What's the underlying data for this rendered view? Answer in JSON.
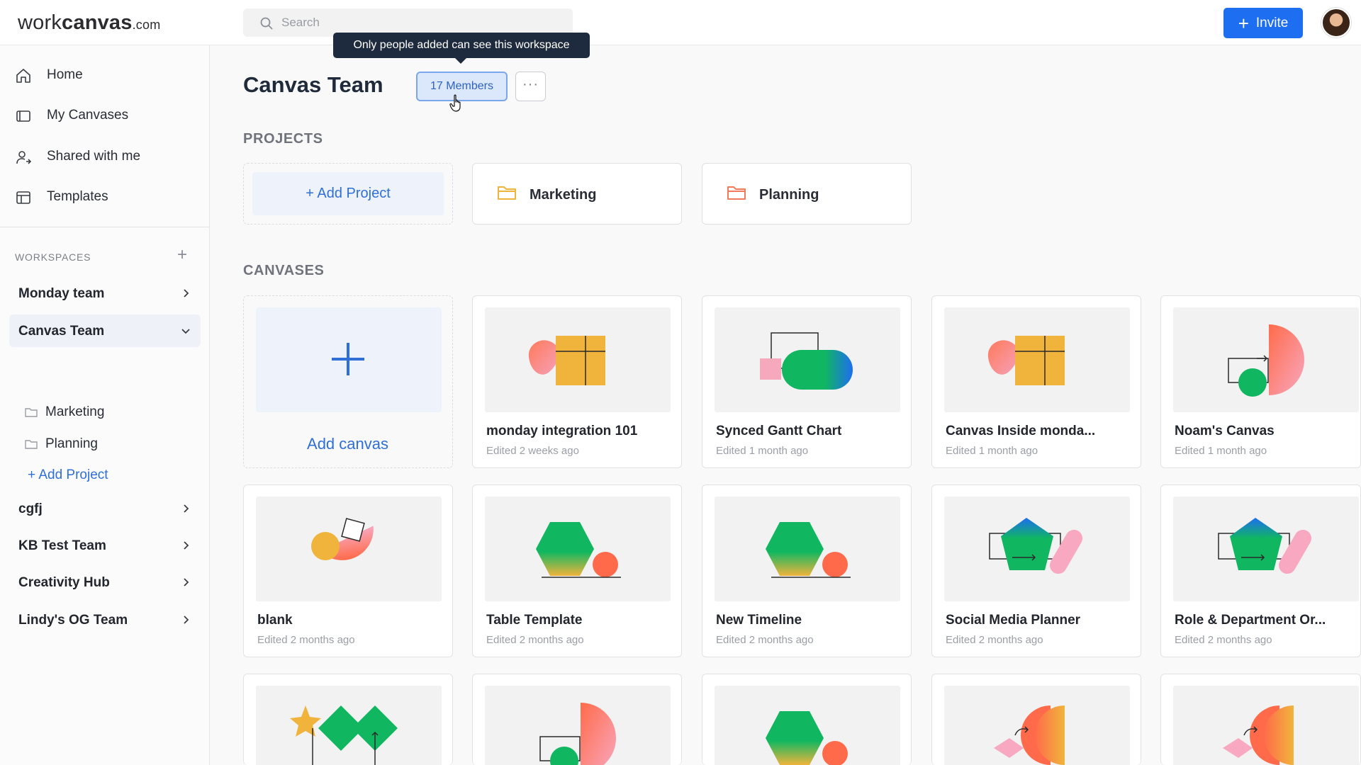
{
  "header": {
    "logo_part1": "work",
    "logo_part2": "canvas",
    "logo_part3": ".com",
    "search_placeholder": "Search",
    "invite_label": "Invite"
  },
  "sidebar": {
    "nav": [
      {
        "label": "Home",
        "icon": "home-icon"
      },
      {
        "label": "My Canvases",
        "icon": "canvas-icon"
      },
      {
        "label": "Shared with me",
        "icon": "user-share-icon"
      },
      {
        "label": "Templates",
        "icon": "template-icon"
      }
    ],
    "workspaces_title": "WORKSPACES",
    "workspaces": [
      {
        "label": "Monday team",
        "expanded": false
      },
      {
        "label": "Canvas Team",
        "expanded": true
      },
      {
        "label": "cgfj",
        "expanded": false
      },
      {
        "label": "KB Test Team",
        "expanded": false
      },
      {
        "label": "Creativity Hub",
        "expanded": false
      },
      {
        "label": "Lindy's OG Team",
        "expanded": false
      }
    ],
    "canvas_team_sub": [
      "Marketing",
      "Planning"
    ],
    "add_project": "+ Add Project"
  },
  "main": {
    "title": "Canvas Team",
    "members_label": "17 Members",
    "more_label": "···",
    "tooltip": "Only people added can see this workspace",
    "projects_label": "PROJECTS",
    "add_project_label": "+ Add Project",
    "projects": [
      {
        "name": "Marketing",
        "folder_color": "#f0b43c"
      },
      {
        "name": "Planning",
        "folder_color": "#f07a5a"
      }
    ],
    "canvases_label": "CANVASES",
    "add_canvas_label": "Add canvas",
    "canvases": [
      {
        "title": "monday integration 101",
        "meta": "Edited 2 weeks ago",
        "art": "blob-grid"
      },
      {
        "title": "Synced Gantt Chart",
        "meta": "Edited 1 month ago",
        "art": "pill-box"
      },
      {
        "title": "Canvas Inside monda...",
        "meta": "Edited 1 month ago",
        "art": "blob-grid"
      },
      {
        "title": "Noam's Canvas",
        "meta": "Edited 1 month ago",
        "art": "half-circle"
      },
      {
        "title": "blank",
        "meta": "Edited 2 months ago",
        "art": "bowl"
      },
      {
        "title": "Table Template",
        "meta": "Edited 2 months ago",
        "art": "hexagon"
      },
      {
        "title": "New Timeline",
        "meta": "Edited 2 months ago",
        "art": "hexagon"
      },
      {
        "title": "Social Media Planner",
        "meta": "Edited 2 months ago",
        "art": "pentagon"
      },
      {
        "title": "Role & Department Or...",
        "meta": "Edited 2 months ago",
        "art": "pentagon"
      },
      {
        "title": "",
        "meta": "",
        "art": "star-diamond"
      },
      {
        "title": "",
        "meta": "",
        "art": "half-circle"
      },
      {
        "title": "",
        "meta": "",
        "art": "hexagon"
      },
      {
        "title": "",
        "meta": "",
        "art": "fan"
      },
      {
        "title": "",
        "meta": "",
        "art": "fan"
      }
    ]
  },
  "colors": {
    "accent": "#1d6ef0",
    "link": "#2f6fd8",
    "tooltip_bg": "#1e2a3e"
  }
}
